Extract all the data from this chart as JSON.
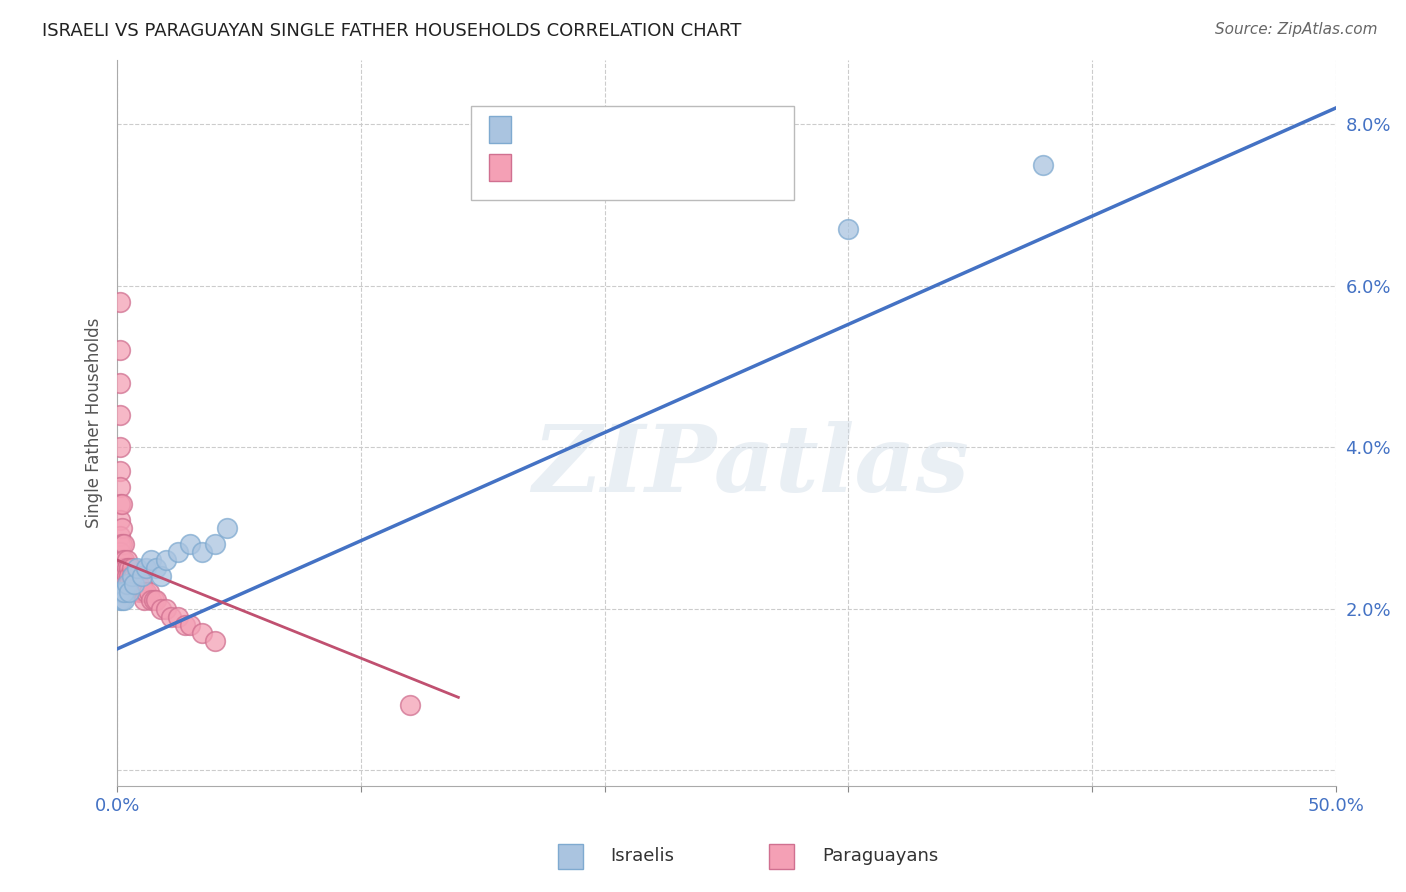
{
  "title": "ISRAELI VS PARAGUAYAN SINGLE FATHER HOUSEHOLDS CORRELATION CHART",
  "source": "Source: ZipAtlas.com",
  "ylabel": "Single Father Households",
  "xlim": [
    0,
    0.5
  ],
  "ylim": [
    -0.002,
    0.088
  ],
  "yticks": [
    0.0,
    0.02,
    0.04,
    0.06,
    0.08
  ],
  "ytick_labels": [
    "",
    "2.0%",
    "4.0%",
    "6.0%",
    "8.0%"
  ],
  "xticks": [
    0.0,
    0.1,
    0.2,
    0.3,
    0.4,
    0.5
  ],
  "xtick_labels": [
    "0.0%",
    "",
    "",
    "",
    "",
    "50.0%"
  ],
  "israeli_color": "#aac4e0",
  "paraguayan_color": "#f4a0b5",
  "israeli_edge": "#7faad0",
  "paraguayan_edge": "#d07090",
  "watermark": "ZIPatlas",
  "israeli_x": [
    0.001,
    0.001,
    0.002,
    0.002,
    0.003,
    0.003,
    0.004,
    0.005,
    0.006,
    0.007,
    0.008,
    0.01,
    0.012,
    0.014,
    0.016,
    0.018,
    0.02,
    0.025,
    0.03,
    0.035,
    0.04,
    0.045,
    0.3,
    0.38
  ],
  "israeli_y": [
    0.021,
    0.022,
    0.021,
    0.022,
    0.021,
    0.022,
    0.023,
    0.022,
    0.024,
    0.023,
    0.025,
    0.024,
    0.025,
    0.026,
    0.025,
    0.024,
    0.026,
    0.027,
    0.028,
    0.027,
    0.028,
    0.03,
    0.067,
    0.075
  ],
  "paraguayan_x": [
    0.001,
    0.001,
    0.001,
    0.001,
    0.001,
    0.001,
    0.001,
    0.001,
    0.001,
    0.001,
    0.001,
    0.001,
    0.001,
    0.002,
    0.002,
    0.002,
    0.002,
    0.002,
    0.002,
    0.002,
    0.003,
    0.003,
    0.003,
    0.003,
    0.003,
    0.004,
    0.004,
    0.004,
    0.004,
    0.005,
    0.005,
    0.005,
    0.006,
    0.006,
    0.006,
    0.007,
    0.007,
    0.008,
    0.008,
    0.009,
    0.009,
    0.01,
    0.01,
    0.011,
    0.011,
    0.012,
    0.013,
    0.014,
    0.015,
    0.016,
    0.018,
    0.02,
    0.022,
    0.025,
    0.028,
    0.03,
    0.035,
    0.04,
    0.12
  ],
  "paraguayan_y": [
    0.058,
    0.052,
    0.048,
    0.044,
    0.04,
    0.037,
    0.035,
    0.033,
    0.031,
    0.029,
    0.028,
    0.027,
    0.026,
    0.033,
    0.03,
    0.028,
    0.026,
    0.025,
    0.024,
    0.023,
    0.028,
    0.026,
    0.025,
    0.024,
    0.023,
    0.026,
    0.025,
    0.024,
    0.023,
    0.025,
    0.024,
    0.023,
    0.025,
    0.024,
    0.023,
    0.024,
    0.023,
    0.024,
    0.023,
    0.023,
    0.022,
    0.023,
    0.022,
    0.022,
    0.021,
    0.022,
    0.022,
    0.021,
    0.021,
    0.021,
    0.02,
    0.02,
    0.019,
    0.019,
    0.018,
    0.018,
    0.017,
    0.016,
    0.008
  ],
  "blue_line_x": [
    0.0,
    0.5
  ],
  "blue_line_y": [
    0.015,
    0.082
  ],
  "pink_line_x": [
    0.0,
    0.14
  ],
  "pink_line_y": [
    0.026,
    0.009
  ],
  "grid_color": "#cccccc",
  "blue_line_color": "#4472c4",
  "pink_line_color": "#c05070"
}
